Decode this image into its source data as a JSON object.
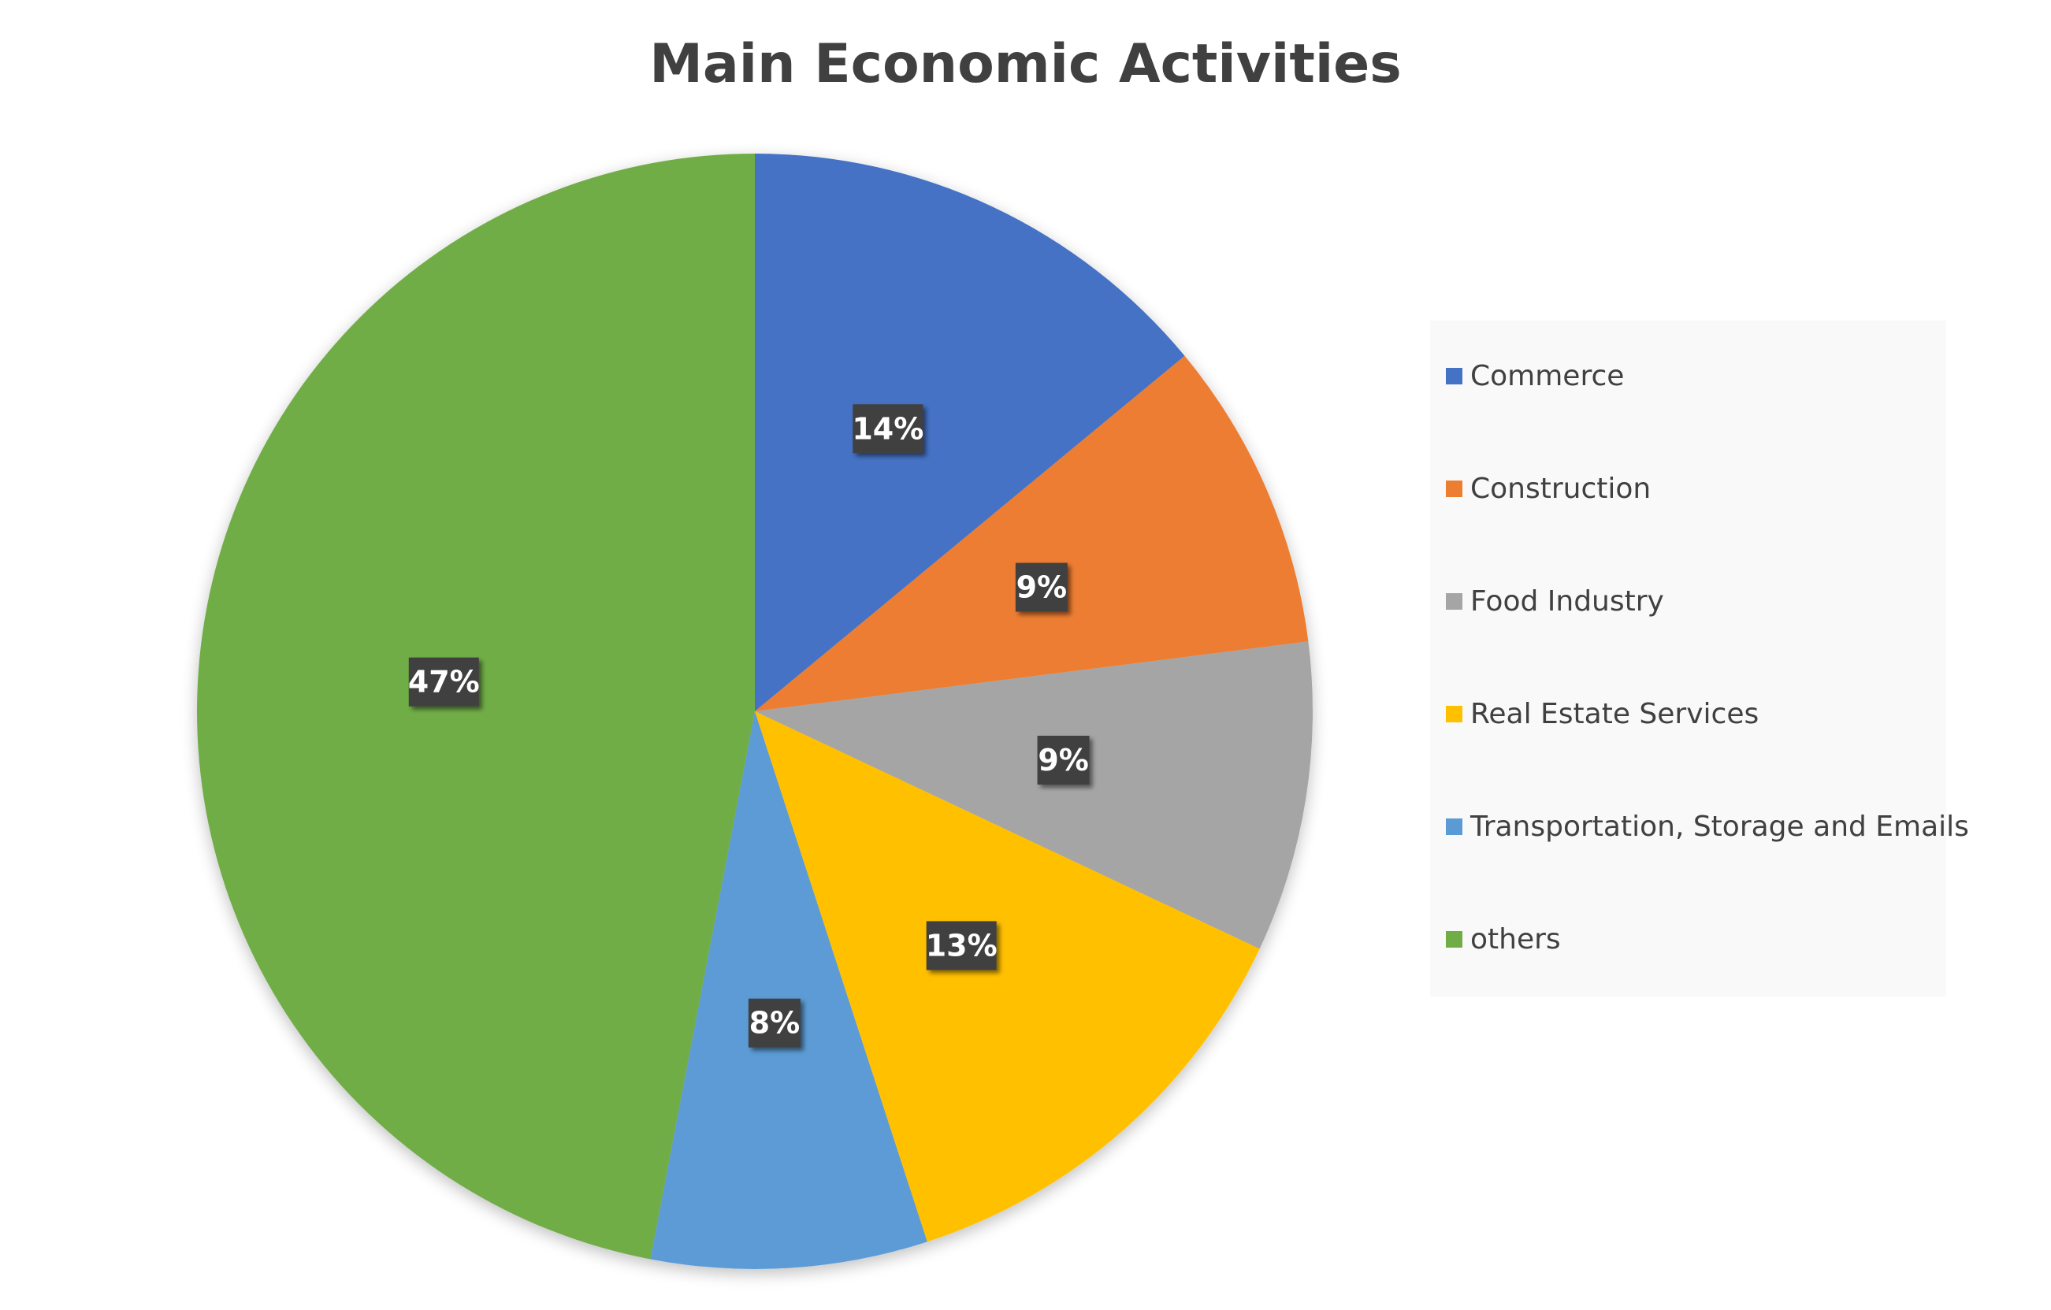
{
  "chart_data": {
    "type": "pie",
    "title": "Main Economic Activities",
    "start_angle": "12 o'clock, clockwise",
    "legend_position": "right",
    "slices": [
      {
        "name": "Commerce",
        "value": 14,
        "label": "14%",
        "color": "#4472C4"
      },
      {
        "name": "Construction",
        "value": 9,
        "label": "9%",
        "color": "#ED7D31"
      },
      {
        "name": "Food Industry",
        "value": 9,
        "label": "9%",
        "color": "#A5A5A5"
      },
      {
        "name": "Real Estate Services",
        "value": 13,
        "label": "13%",
        "color": "#FFC000"
      },
      {
        "name": "Transportation, Storage and Emails",
        "value": 8,
        "label": "8%",
        "color": "#5B9BD5"
      },
      {
        "name": "others",
        "value": 47,
        "label": "47%",
        "color": "#70AD47"
      }
    ]
  }
}
